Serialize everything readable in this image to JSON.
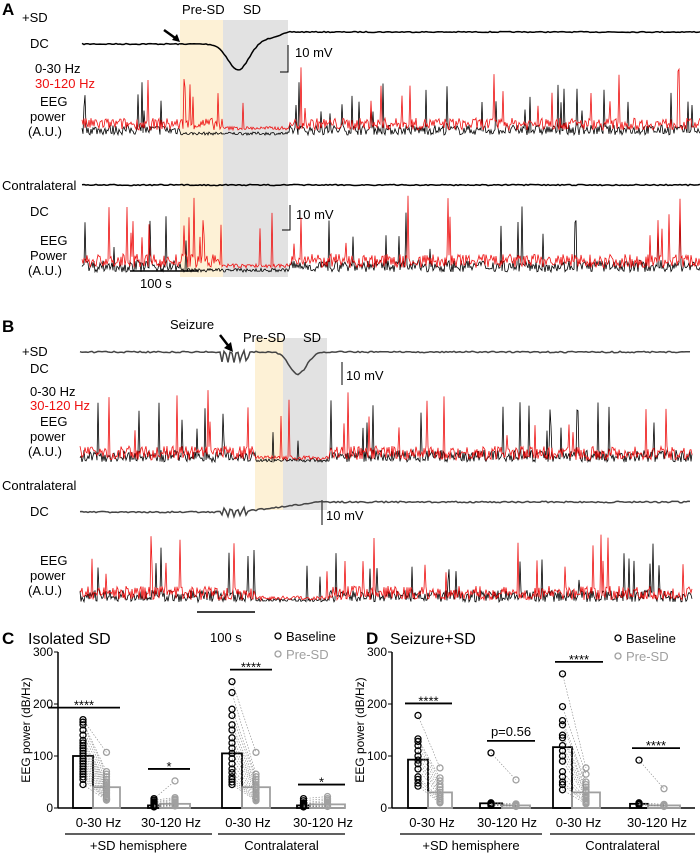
{
  "panelA": {
    "letter": "A",
    "sd": "+SD",
    "dc": "DC",
    "preSD": "Pre-SD",
    "SD": "SD",
    "scale": "10 mV",
    "low": "0-30 Hz",
    "high": "30-120 Hz",
    "eeg1": "EEG",
    "eeg2": "power",
    "eeg3": "(A.U.)",
    "contra": "Contralateral",
    "dc2": "DC",
    "scale2": "10 mV",
    "eegc1": "EEG",
    "eegc2": "Power",
    "eegc3": "(A.U.)",
    "time": "100 s"
  },
  "panelB": {
    "letter": "B",
    "sd": "+SD",
    "dc": "DC",
    "seizure": "Seizure",
    "preSD": "Pre-SD",
    "SD": "SD",
    "scale": "10 mV",
    "low": "0-30 Hz",
    "high": "30-120 Hz",
    "eeg1": "EEG",
    "eeg2": "power",
    "eeg3": "(A.U.)",
    "contra": "Contralateral",
    "dc2": "DC",
    "scale2": "10 mV",
    "eegc1": "EEG",
    "eegc2": "power",
    "eegc3": "(A.U.)",
    "time": "100 s"
  },
  "colors": {
    "low": "#000000",
    "high": "#ee1111",
    "preSD_band": "#fdf1d6",
    "SD_band": "#e2e2e2",
    "baseline": "#000000",
    "preSD": "#a0a0a0"
  },
  "chart_data": [
    {
      "type": "bar",
      "panel": "C",
      "title": "Isolated SD",
      "ylabel": "EEG power (dB/Hz)",
      "ylim": [
        0,
        300
      ],
      "yticks": [
        0,
        100,
        200,
        300
      ],
      "legend": [
        "Baseline",
        "Pre-SD"
      ],
      "legend_placement": "top-right",
      "categories": [
        "0-30 Hz",
        "30-120 Hz",
        "0-30 Hz",
        "30-120 Hz"
      ],
      "groups": [
        "+SD hemisphere",
        "Contralateral"
      ],
      "series": [
        {
          "name": "Baseline",
          "values": [
            100,
            5,
            105,
            5
          ]
        },
        {
          "name": "Pre-SD",
          "values": [
            40,
            8,
            40,
            7
          ]
        }
      ],
      "significance": [
        "****",
        "*",
        "****",
        "*"
      ],
      "points": [
        {
          "baseline": [
            170,
            165,
            160,
            150,
            140,
            130,
            125,
            120,
            115,
            110,
            105,
            100,
            95,
            90,
            85,
            80,
            75,
            70,
            65,
            60,
            55,
            45
          ],
          "pre": [
            107,
            70,
            65,
            60,
            55,
            50,
            48,
            45,
            42,
            40,
            38,
            35,
            33,
            30,
            28,
            25,
            22,
            20,
            18,
            17,
            16,
            15
          ]
        },
        {
          "baseline": [
            18,
            15,
            12,
            10,
            8,
            6,
            5,
            4,
            3,
            2
          ],
          "pre": [
            52,
            20,
            17,
            15,
            12,
            10,
            8,
            6,
            5,
            4
          ]
        },
        {
          "baseline": [
            243,
            222,
            190,
            178,
            160,
            150,
            135,
            125,
            115,
            105,
            95,
            85,
            75,
            68,
            60,
            55,
            50,
            45
          ],
          "pre": [
            107,
            65,
            60,
            55,
            50,
            45,
            42,
            40,
            38,
            35,
            30,
            28,
            25,
            22,
            20,
            18,
            16,
            14
          ]
        },
        {
          "baseline": [
            18,
            14,
            10,
            8,
            6,
            4,
            3,
            2
          ],
          "pre": [
            22,
            18,
            15,
            12,
            9,
            6,
            4,
            3
          ]
        }
      ]
    },
    {
      "type": "bar",
      "panel": "D",
      "title": "Seizure+SD",
      "ylabel": "EEG power (dB/Hz)",
      "ylim": [
        0,
        300
      ],
      "yticks": [
        0,
        100,
        200,
        300
      ],
      "legend": [
        "Baseline",
        "Pre-SD"
      ],
      "legend_placement": "top-right",
      "categories": [
        "0-30 Hz",
        "30-120 Hz",
        "0-30 Hz",
        "30-120 Hz"
      ],
      "groups": [
        "+SD hemisphere",
        "Contralateral"
      ],
      "series": [
        {
          "name": "Baseline",
          "values": [
            93,
            9,
            117,
            8
          ]
        },
        {
          "name": "Pre-SD",
          "values": [
            30,
            5,
            30,
            5
          ]
        }
      ],
      "significance": [
        "****",
        "p=0.56",
        "****",
        "****"
      ],
      "points": [
        {
          "baseline": [
            178,
            133,
            128,
            120,
            110,
            100,
            92,
            85,
            75,
            60,
            55,
            48,
            42
          ],
          "pre": [
            77,
            58,
            52,
            45,
            40,
            35,
            30,
            26,
            22,
            18,
            15,
            12,
            10
          ]
        },
        {
          "baseline": [
            106,
            10,
            8,
            7,
            6,
            5
          ],
          "pre": [
            54,
            8,
            6,
            5,
            4,
            3
          ]
        },
        {
          "baseline": [
            258,
            195,
            168,
            160,
            140,
            135,
            120,
            110,
            100,
            90,
            70,
            60,
            50,
            45,
            35
          ],
          "pre": [
            77,
            65,
            50,
            45,
            40,
            35,
            32,
            30,
            25,
            22,
            18,
            15,
            12,
            10,
            8
          ]
        },
        {
          "baseline": [
            92,
            10,
            8,
            7,
            6
          ],
          "pre": [
            37,
            7,
            5,
            4,
            3
          ]
        }
      ]
    }
  ]
}
